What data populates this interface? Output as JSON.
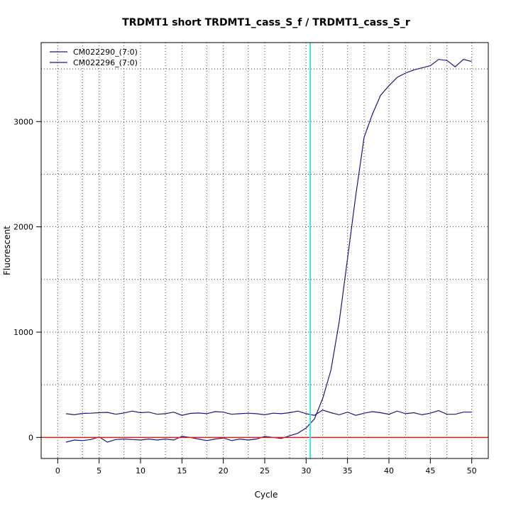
{
  "chart_data": {
    "type": "line",
    "title": "TRDMT1 short TRDMT1_cass_S_f / TRDMT1_cass_S_r",
    "xlabel": "Cycle",
    "ylabel": "Fluorescent",
    "xlim": [
      -2,
      52
    ],
    "ylim": [
      -200,
      3750
    ],
    "x_ticks": [
      0,
      5,
      10,
      15,
      20,
      25,
      30,
      35,
      40,
      45,
      50
    ],
    "y_ticks": [
      0,
      1000,
      2000,
      3000
    ],
    "v_grid": [
      3,
      8,
      13,
      18,
      23,
      28,
      32,
      37,
      42,
      47
    ],
    "h_grid": [
      500,
      1500,
      2500,
      3500
    ],
    "grid": true,
    "legend_position": "top-left",
    "threshold": 0,
    "threshold_color": "#cc2222",
    "vline_x": 30.5,
    "vline_color": "#33e5e5",
    "series_color": "#1a1a7a",
    "x": [
      1,
      2,
      3,
      4,
      5,
      6,
      7,
      8,
      9,
      10,
      11,
      12,
      13,
      14,
      15,
      16,
      17,
      18,
      19,
      20,
      21,
      22,
      23,
      24,
      25,
      26,
      27,
      28,
      29,
      30,
      31,
      32,
      33,
      34,
      35,
      36,
      37,
      38,
      39,
      40,
      41,
      42,
      43,
      44,
      45,
      46,
      47,
      48,
      49,
      50
    ],
    "series": [
      {
        "name": "CM022290_(7:0)",
        "values": [
          -45,
          -25,
          -30,
          -20,
          5,
          -45,
          -20,
          -15,
          -20,
          -25,
          -15,
          -25,
          -15,
          -25,
          10,
          0,
          -15,
          -30,
          -15,
          -5,
          -30,
          -15,
          -25,
          -15,
          10,
          0,
          -10,
          15,
          40,
          90,
          175,
          370,
          640,
          1100,
          1700,
          2300,
          2850,
          3070,
          3250,
          3340,
          3420,
          3460,
          3490,
          3510,
          3530,
          3590,
          3580,
          3520,
          3590,
          3570
        ]
      },
      {
        "name": "CM022296_(7:0)",
        "values": [
          225,
          215,
          228,
          230,
          235,
          238,
          220,
          232,
          250,
          235,
          240,
          220,
          225,
          240,
          210,
          228,
          232,
          225,
          245,
          240,
          220,
          225,
          230,
          225,
          215,
          230,
          225,
          235,
          250,
          225,
          210,
          260,
          235,
          215,
          240,
          210,
          230,
          245,
          235,
          220,
          250,
          225,
          235,
          215,
          230,
          255,
          220,
          220,
          240,
          240
        ]
      }
    ]
  }
}
